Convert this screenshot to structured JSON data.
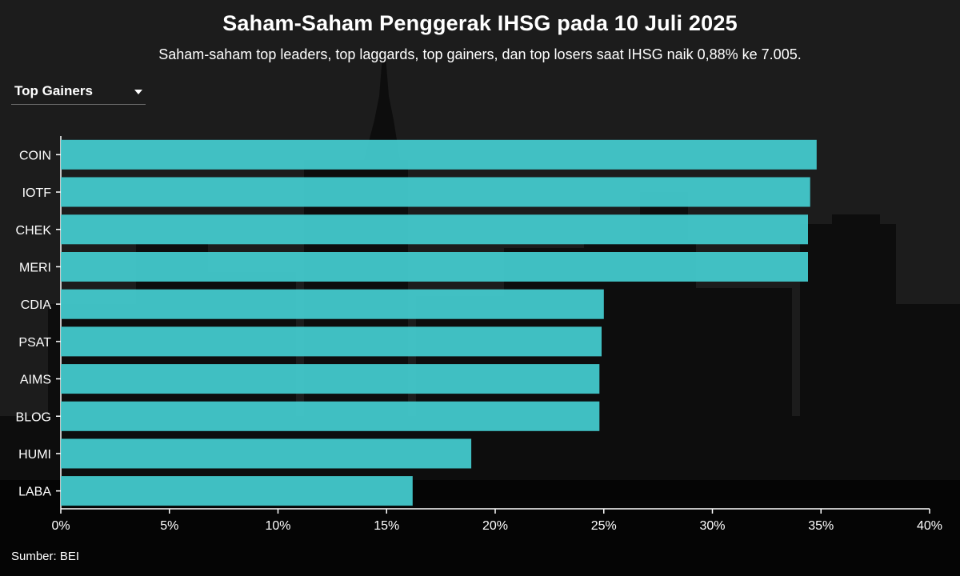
{
  "header": {
    "title": "Saham-Saham Penggerak IHSG pada 10 Juli 2025",
    "subtitle": "Saham-saham top leaders, top laggards, top gainers, dan top losers saat IHSG naik 0,88% ke 7.005."
  },
  "filter": {
    "selected": "Top Gainers",
    "icon": "chevron-down-icon"
  },
  "footer": {
    "source": "Sumber: BEI"
  },
  "colors": {
    "bar": "#43c9cc",
    "text": "#ffffff",
    "axis": "#ffffff",
    "background": "#1a1a1a"
  },
  "chart_data": {
    "type": "bar",
    "orientation": "horizontal",
    "categories": [
      "COIN",
      "IOTF",
      "CHEK",
      "MERI",
      "CDIA",
      "PSAT",
      "AIMS",
      "BLOG",
      "HUMI",
      "LABA"
    ],
    "values": [
      34.8,
      34.5,
      34.4,
      34.4,
      25.0,
      24.9,
      24.8,
      24.8,
      18.9,
      16.2
    ],
    "xlim": [
      0,
      40
    ],
    "xticks": [
      "0%",
      "5%",
      "10%",
      "15%",
      "20%",
      "25%",
      "30%",
      "35%",
      "40%"
    ],
    "grid": false,
    "legend": "none"
  }
}
